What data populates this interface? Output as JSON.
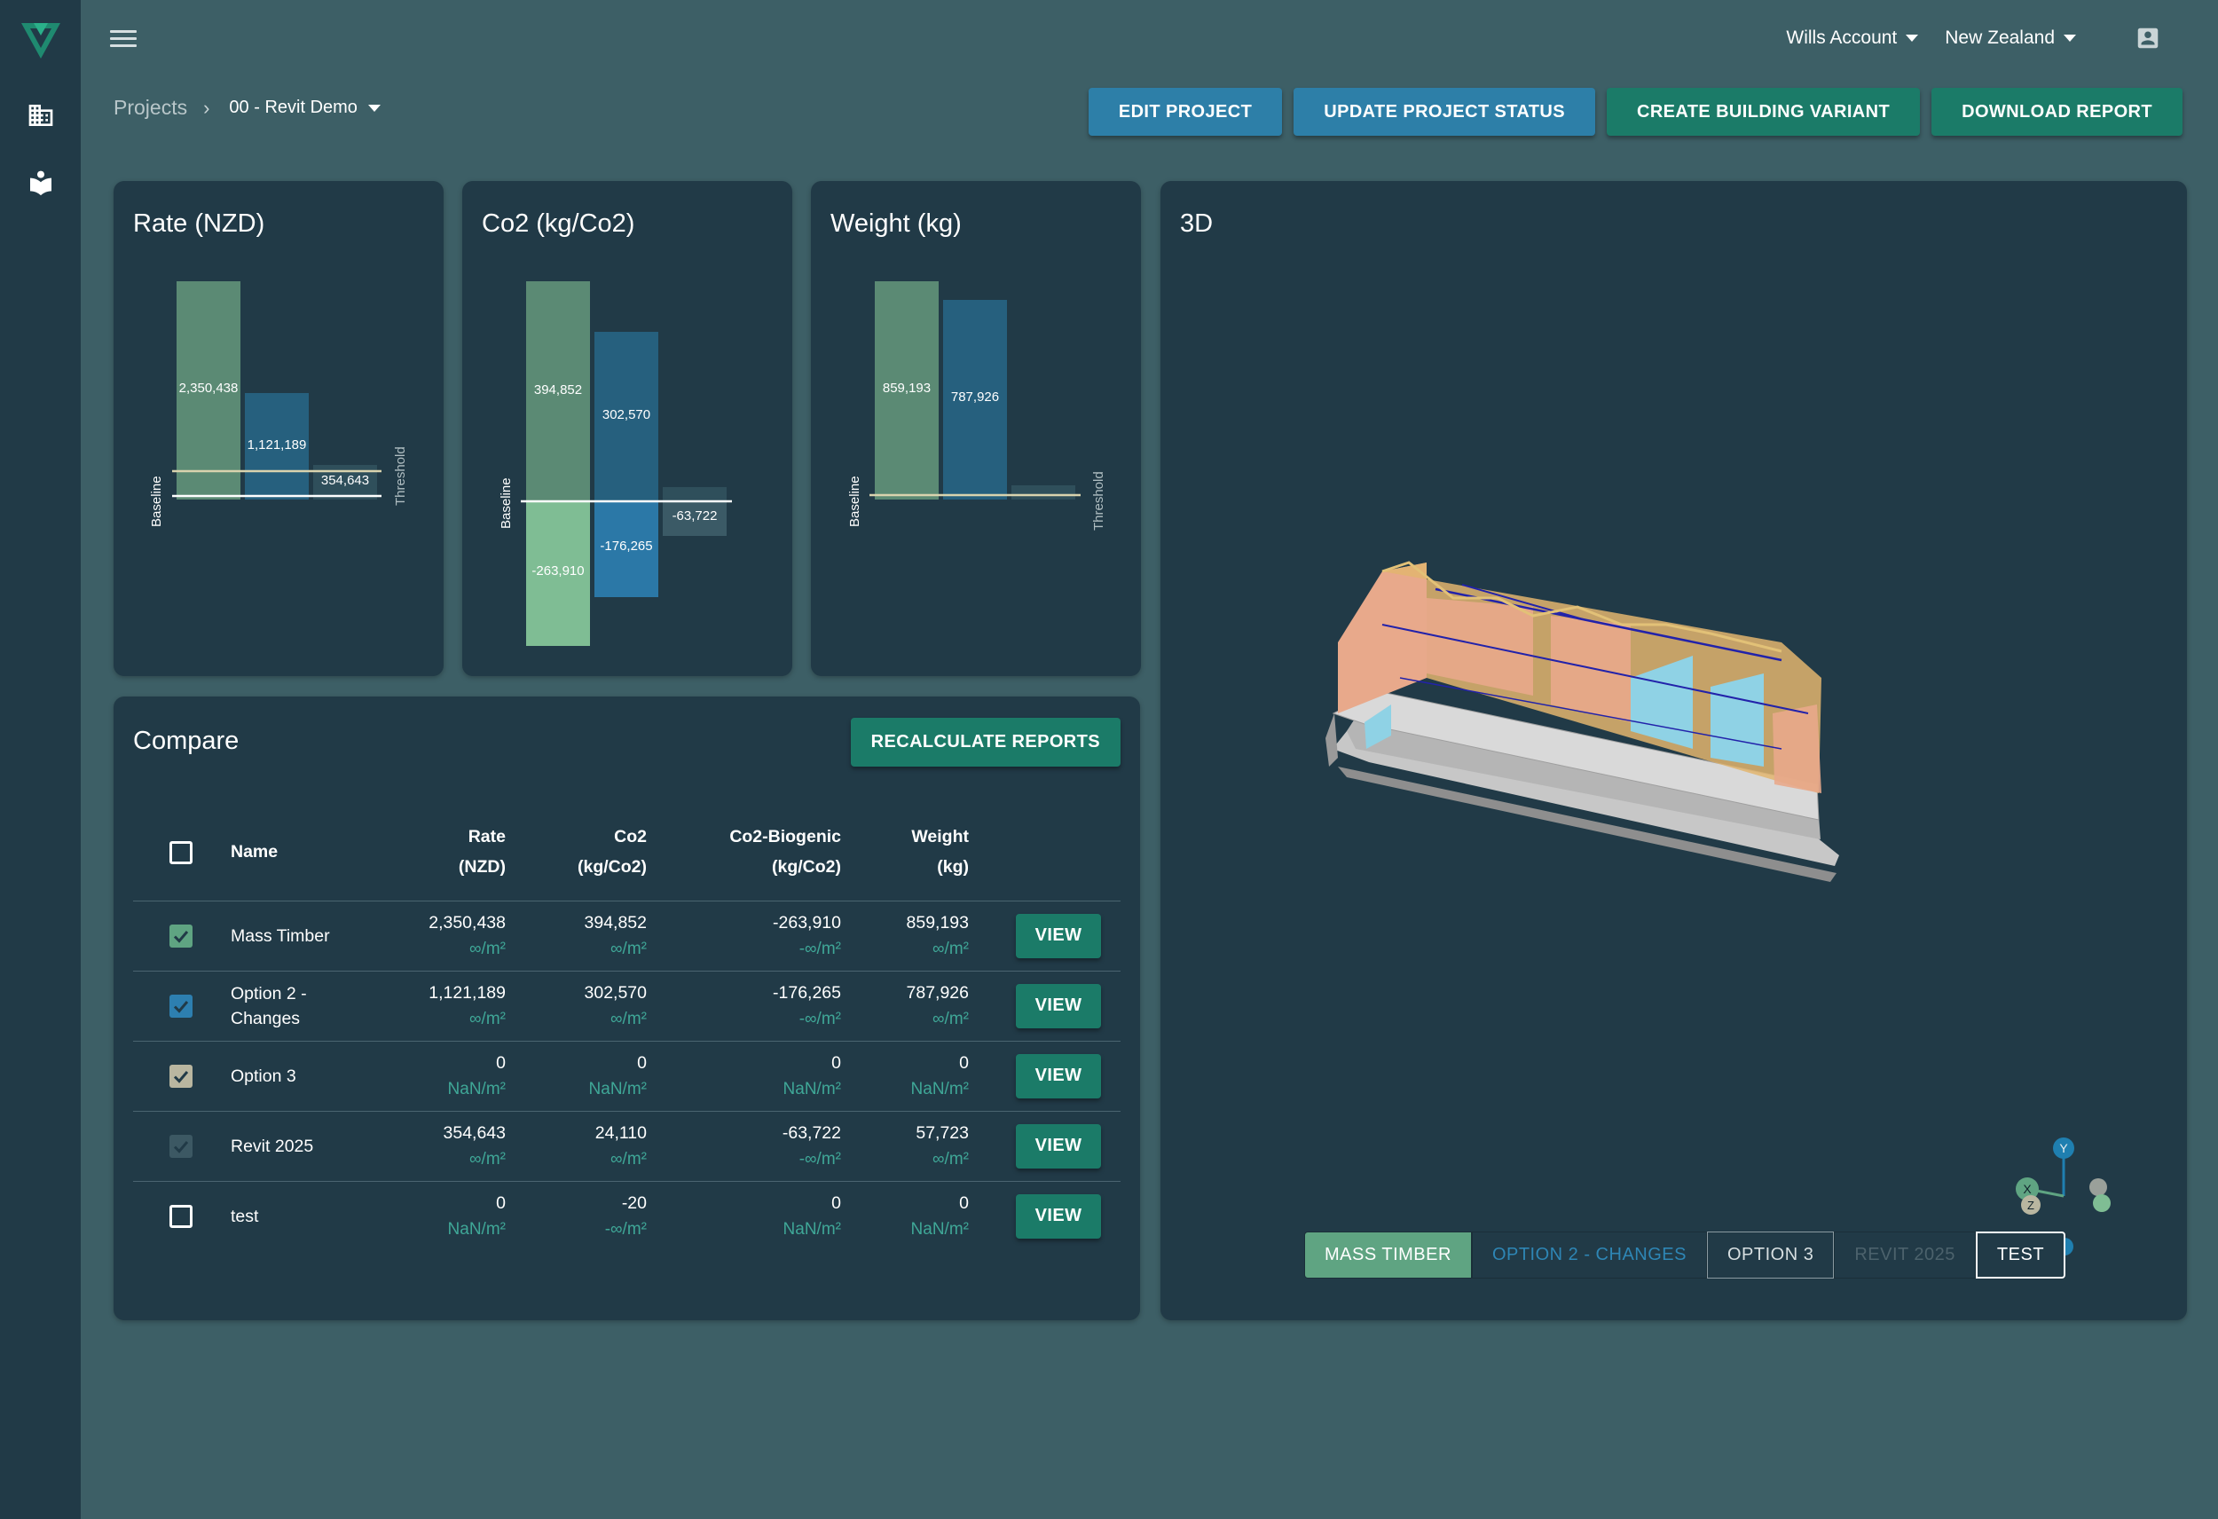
{
  "account": {
    "name": "Wills Account",
    "region": "New Zealand"
  },
  "breadcrumb": {
    "root": "Projects",
    "current": "00 - Revit Demo"
  },
  "actions": {
    "edit": "EDIT PROJECT",
    "status": "UPDATE PROJECT STATUS",
    "variant": "CREATE BUILDING VARIANT",
    "download": "DOWNLOAD REPORT"
  },
  "colors": {
    "mass_timber": "#5b8a74",
    "option2": "#26607e",
    "revit2025": "#2f4f5b",
    "biogenic": "#7fbd94",
    "threshold": "#d9d3ae"
  },
  "chart_data": [
    {
      "type": "bar",
      "title": "Rate (NZD)",
      "baseline_label": "Baseline",
      "threshold_label": "Threshold",
      "series": [
        {
          "name": "Mass Timber",
          "values": [
            2350438
          ]
        },
        {
          "name": "Option 2 - Changes",
          "values": [
            1121189
          ]
        },
        {
          "name": "Revit 2025",
          "values": [
            354643
          ]
        }
      ],
      "value_labels": [
        "2,350,438",
        "1,121,189",
        "354,643"
      ],
      "threshold": 260000
    },
    {
      "type": "bar",
      "title": "Co2 (kg/Co2)",
      "baseline_label": "Baseline",
      "series": [
        {
          "name": "Mass Timber",
          "values": [
            394852
          ],
          "biogenic": -263910
        },
        {
          "name": "Option 2 - Changes",
          "values": [
            302570
          ],
          "biogenic": -176265
        },
        {
          "name": "Revit 2025",
          "values": [
            24110
          ],
          "biogenic": -63722
        }
      ],
      "value_labels": [
        "394,852",
        "302,570",
        "-263,910",
        "-176,265",
        "-63,722"
      ]
    },
    {
      "type": "bar",
      "title": "Weight (kg)",
      "baseline_label": "Baseline",
      "threshold_label": "Threshold",
      "series": [
        {
          "name": "Mass Timber",
          "values": [
            859193
          ]
        },
        {
          "name": "Option 2 - Changes",
          "values": [
            787926
          ]
        },
        {
          "name": "Revit 2025",
          "values": [
            57723
          ]
        }
      ],
      "value_labels": [
        "859,193",
        "787,926"
      ]
    }
  ],
  "compare": {
    "title": "Compare",
    "recalc": "RECALCULATE REPORTS",
    "headers": {
      "name": "Name",
      "rate": [
        "Rate",
        "(NZD)"
      ],
      "co2": [
        "Co2",
        "(kg/Co2)"
      ],
      "bio": [
        "Co2-Biogenic",
        "(kg/Co2)"
      ],
      "weight": [
        "Weight",
        "(kg)"
      ]
    },
    "view_label": "VIEW",
    "rows": [
      {
        "name": "Mass Timber",
        "check": "#5fa482",
        "rate": "2,350,438",
        "rate_sub": "∞/m²",
        "co2": "394,852",
        "co2_sub": "∞/m²",
        "bio": "-263,910",
        "bio_sub": "-∞/m²",
        "weight": "859,193",
        "weight_sub": "∞/m²"
      },
      {
        "name": "Option 2 - Changes",
        "check": "#2d7fb0",
        "rate": "1,121,189",
        "rate_sub": "∞/m²",
        "co2": "302,570",
        "co2_sub": "∞/m²",
        "bio": "-176,265",
        "bio_sub": "-∞/m²",
        "weight": "787,926",
        "weight_sub": "∞/m²"
      },
      {
        "name": "Option 3",
        "check": "#b9b6a0",
        "rate": "0",
        "rate_sub": "NaN/m²",
        "co2": "0",
        "co2_sub": "NaN/m²",
        "bio": "0",
        "bio_sub": "NaN/m²",
        "weight": "0",
        "weight_sub": "NaN/m²"
      },
      {
        "name": "Revit 2025",
        "check": "#3c5863",
        "rate": "354,643",
        "rate_sub": "∞/m²",
        "co2": "24,110",
        "co2_sub": "∞/m²",
        "bio": "-63,722",
        "bio_sub": "-∞/m²",
        "weight": "57,723",
        "weight_sub": "∞/m²"
      },
      {
        "name": "test",
        "check": "",
        "rate": "0",
        "rate_sub": "NaN/m²",
        "co2": "-20",
        "co2_sub": "-∞/m²",
        "bio": "0",
        "bio_sub": "NaN/m²",
        "weight": "0",
        "weight_sub": "NaN/m²"
      }
    ]
  },
  "view3d": {
    "title": "3D",
    "variants": [
      "MASS TIMBER",
      "OPTION 2 - CHANGES",
      "OPTION 3",
      "REVIT 2025",
      "TEST"
    ],
    "axes": {
      "x": "X",
      "y": "Y",
      "z": "Z"
    }
  }
}
